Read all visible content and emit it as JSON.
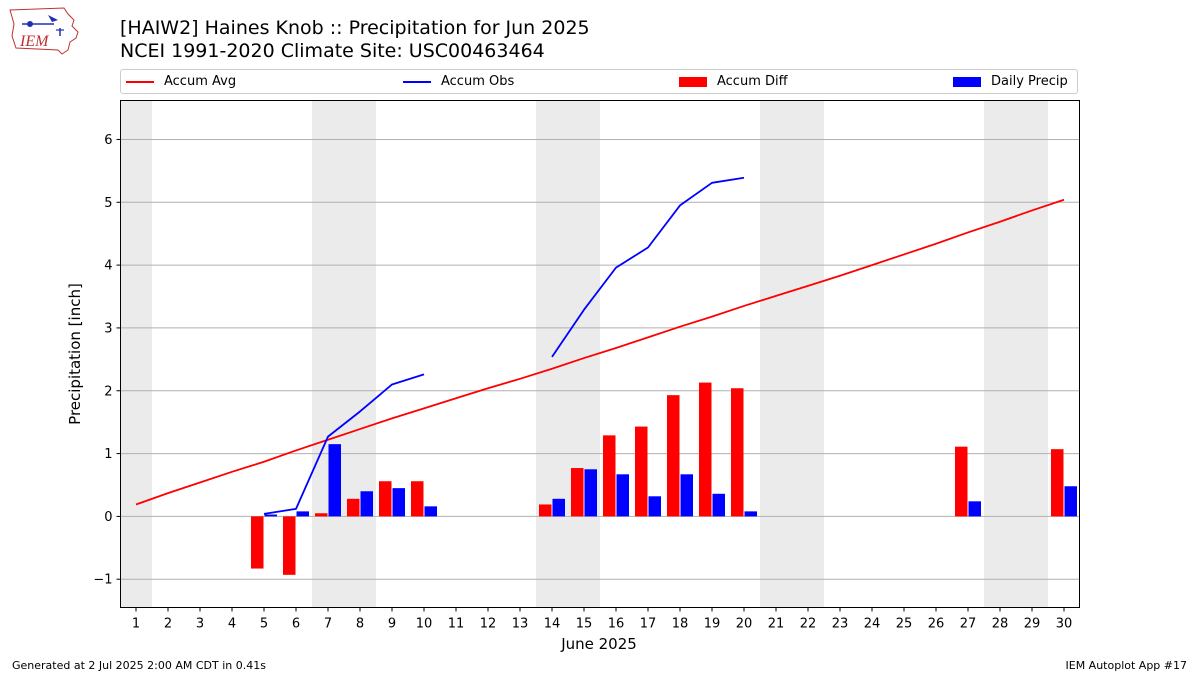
{
  "header": {
    "logo_text": "IEM",
    "title_line1": "[HAIW2] Haines Knob :: Precipitation for Jun 2025",
    "title_line2": "NCEI 1991-2020 Climate Site: USC00463464"
  },
  "footer": {
    "generated": "Generated at 2 Jul 2025 2:00 AM CDT in 0.41s",
    "app": "IEM Autoplot App #17"
  },
  "colors": {
    "accum_avg": "#ff0000",
    "accum_obs": "#0000ff",
    "accum_diff": "#ff0000",
    "daily_precip": "#0000ff",
    "weekend_shade": "#ebebeb",
    "grid": "#b0b0b0"
  },
  "chart_data": {
    "type": "bar",
    "xlabel": "June 2025",
    "ylabel": "Precipitation [inch]",
    "ylim": [
      -1.45,
      6.62
    ],
    "yticks": [
      -1,
      0,
      1,
      2,
      3,
      4,
      5,
      6
    ],
    "ytick_labels": [
      "−1",
      "0",
      "1",
      "2",
      "3",
      "4",
      "5",
      "6"
    ],
    "x_days": [
      1,
      2,
      3,
      4,
      5,
      6,
      7,
      8,
      9,
      10,
      11,
      12,
      13,
      14,
      15,
      16,
      17,
      18,
      19,
      20,
      21,
      22,
      23,
      24,
      25,
      26,
      27,
      28,
      29,
      30
    ],
    "weekend_days": [
      1,
      7,
      8,
      14,
      15,
      21,
      22,
      28,
      29
    ],
    "grid": "horizontal",
    "legend": {
      "placement": "top, above plot",
      "entries": [
        "Accum Avg",
        "Accum Obs",
        "Accum Diff",
        "Daily Precip"
      ]
    },
    "series": [
      {
        "name": "Accum Avg",
        "kind": "line",
        "x": [
          1,
          2,
          3,
          4,
          5,
          6,
          7,
          8,
          9,
          10,
          11,
          12,
          13,
          14,
          15,
          16,
          17,
          18,
          19,
          20,
          21,
          22,
          23,
          24,
          25,
          26,
          27,
          28,
          29,
          30
        ],
        "values": [
          0.19,
          0.37,
          0.54,
          0.71,
          0.87,
          1.05,
          1.22,
          1.39,
          1.56,
          1.72,
          1.88,
          2.04,
          2.19,
          2.35,
          2.52,
          2.68,
          2.85,
          3.02,
          3.18,
          3.35,
          3.51,
          3.67,
          3.83,
          4.0,
          4.17,
          4.34,
          4.52,
          4.69,
          4.87,
          5.04
        ]
      },
      {
        "name": "Accum Obs",
        "kind": "line",
        "segments": [
          {
            "x": [
              5,
              6,
              7,
              8,
              9,
              10
            ],
            "values": [
              0.04,
              0.12,
              1.27,
              1.67,
              2.1,
              2.26
            ]
          },
          {
            "x": [
              14,
              15,
              16,
              17,
              18,
              19,
              20
            ],
            "values": [
              2.54,
              3.29,
              3.96,
              4.28,
              4.95,
              5.31,
              5.39
            ]
          }
        ]
      },
      {
        "name": "Accum Diff",
        "kind": "bar",
        "x": [
          5,
          6,
          7,
          8,
          9,
          10,
          14,
          15,
          16,
          17,
          18,
          19,
          20,
          27,
          30
        ],
        "values": [
          -0.83,
          -0.93,
          0.05,
          0.28,
          0.56,
          0.56,
          0.19,
          0.77,
          1.29,
          1.43,
          1.93,
          2.13,
          2.04,
          1.11,
          1.07
        ]
      },
      {
        "name": "Daily Precip",
        "kind": "bar",
        "x": [
          5,
          6,
          7,
          8,
          9,
          10,
          14,
          15,
          16,
          17,
          18,
          19,
          20,
          27,
          30
        ],
        "values": [
          0.03,
          0.08,
          1.15,
          0.4,
          0.45,
          0.16,
          0.28,
          0.75,
          0.67,
          0.32,
          0.67,
          0.36,
          0.08,
          0.24,
          0.48
        ]
      }
    ]
  }
}
